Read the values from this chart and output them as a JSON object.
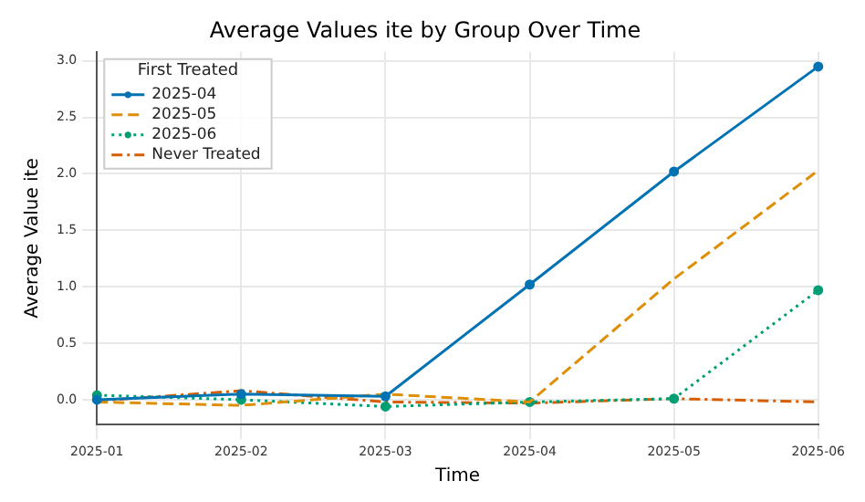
{
  "chart_data": {
    "type": "line",
    "title": "Average Values ite by Group Over Time",
    "xlabel": "Time",
    "ylabel": "Average Value ite",
    "categories": [
      "2025-01",
      "2025-02",
      "2025-03",
      "2025-04",
      "2025-05",
      "2025-06"
    ],
    "series": [
      {
        "name": "2025-04",
        "color": "#0173b2",
        "values": [
          0.0,
          0.05,
          0.03,
          1.02,
          2.02,
          2.95
        ],
        "marker": "circle",
        "line_style": "solid"
      },
      {
        "name": "2025-05",
        "color": "#de8f05",
        "values": [
          -0.02,
          -0.05,
          0.05,
          -0.02,
          1.07,
          2.03
        ],
        "marker": "none",
        "line_style": "dashed"
      },
      {
        "name": "2025-06",
        "color": "#029e73",
        "values": [
          0.04,
          0.0,
          -0.06,
          -0.02,
          0.01,
          0.97
        ],
        "marker": "circle",
        "line_style": "dotted"
      },
      {
        "name": "Never Treated",
        "color": "#d55e00",
        "values": [
          -0.01,
          0.08,
          -0.02,
          -0.03,
          0.01,
          -0.02
        ],
        "marker": "none",
        "line_style": "dashdot"
      }
    ],
    "ylim": [
      -0.22,
      3.08
    ],
    "yticks": [
      {
        "value": 0,
        "label": "0.0"
      },
      0.5,
      {
        "value": 1,
        "label": "1.0"
      },
      1.5,
      {
        "value": 2,
        "label": "2.0"
      },
      2.5,
      {
        "value": 3,
        "label": "3.0"
      }
    ],
    "grid": true,
    "legend": "top left",
    "legend_title": "First Treated"
  }
}
